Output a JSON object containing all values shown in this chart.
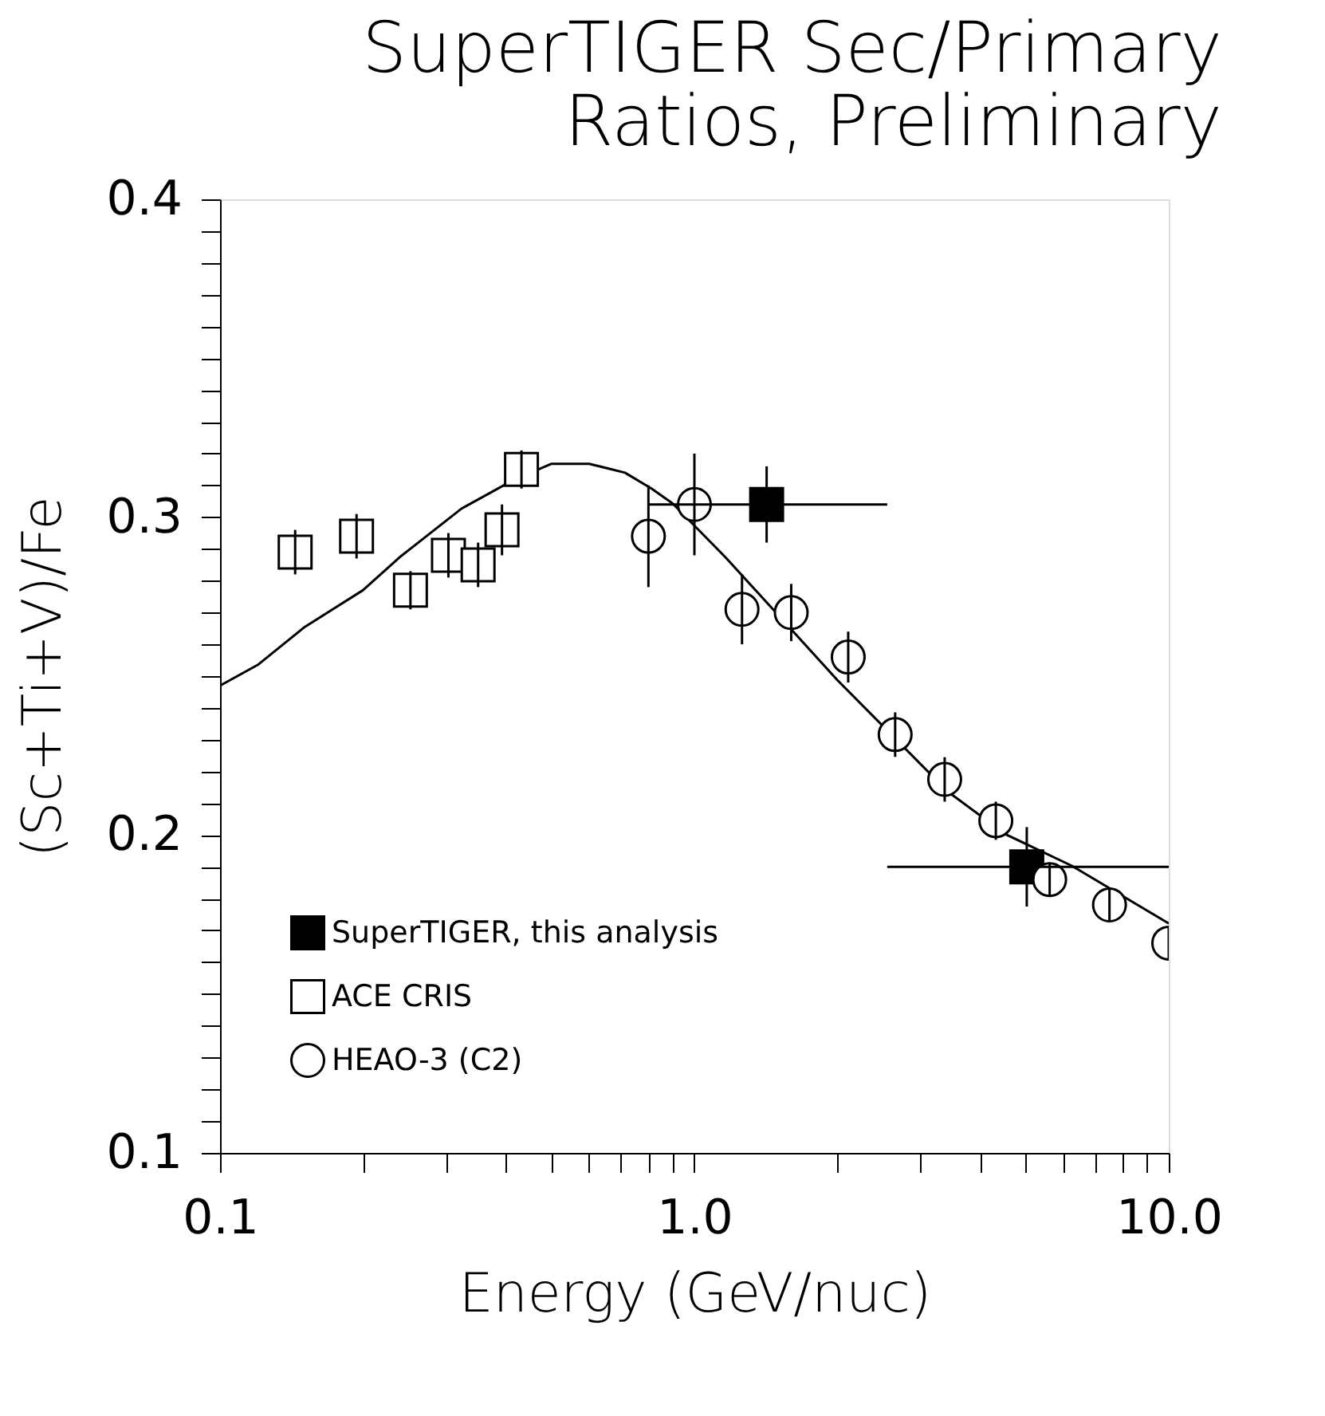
{
  "chart_data": {
    "type": "scatter",
    "title": "SuperTIGER Sec/Primary\nRatios, Preliminary",
    "xlabel": "Energy (GeV/nuc)",
    "ylabel": "(Sc+Ti+V)/Fe",
    "log": "x",
    "xlim": [
      0.1,
      10
    ],
    "ylim": [
      0.1,
      0.4
    ],
    "xticks": [
      {
        "value": 0.1,
        "label": "0.1"
      },
      {
        "value": 0.2,
        "label": null
      },
      {
        "value": 0.3,
        "label": null
      },
      {
        "value": 0.4,
        "label": null
      },
      {
        "value": 0.5,
        "label": null
      },
      {
        "value": 0.6,
        "label": null
      },
      {
        "value": 0.7,
        "label": null
      },
      {
        "value": 0.8,
        "label": null
      },
      {
        "value": 0.9,
        "label": null
      },
      {
        "value": 1,
        "label": "1.0"
      },
      {
        "value": 2,
        "label": null
      },
      {
        "value": 3,
        "label": null
      },
      {
        "value": 4,
        "label": null
      },
      {
        "value": 5,
        "label": null
      },
      {
        "value": 6,
        "label": null
      },
      {
        "value": 7,
        "label": null
      },
      {
        "value": 8,
        "label": null
      },
      {
        "value": 9,
        "label": null
      },
      {
        "value": 10,
        "label": "10.0"
      }
    ],
    "yticks": [
      0.1,
      {
        "value": 0.11,
        "label": null
      },
      {
        "value": 0.12,
        "label": null
      },
      {
        "value": 0.13,
        "label": null
      },
      {
        "value": 0.14,
        "label": null
      },
      {
        "value": 0.15,
        "label": null
      },
      {
        "value": 0.16,
        "label": null
      },
      {
        "value": 0.17,
        "label": null
      },
      {
        "value": 0.18,
        "label": null
      },
      {
        "value": 0.19,
        "label": null
      },
      0.2,
      {
        "value": 0.21,
        "label": null
      },
      {
        "value": 0.22,
        "label": null
      },
      {
        "value": 0.23,
        "label": null
      },
      {
        "value": 0.24,
        "label": null
      },
      {
        "value": 0.25,
        "label": null
      },
      {
        "value": 0.26,
        "label": null
      },
      {
        "value": 0.27,
        "label": null
      },
      {
        "value": 0.28,
        "label": null
      },
      {
        "value": 0.29,
        "label": null
      },
      0.3,
      {
        "value": 0.31,
        "label": null
      },
      {
        "value": 0.32,
        "label": null
      },
      {
        "value": 0.33,
        "label": null
      },
      {
        "value": 0.34,
        "label": null
      },
      {
        "value": 0.35,
        "label": null
      },
      {
        "value": 0.36,
        "label": null
      },
      {
        "value": 0.37,
        "label": null
      },
      {
        "value": 0.38,
        "label": null
      },
      {
        "value": 0.39,
        "label": null
      },
      0.4
    ],
    "grid": false,
    "legend": "bottom left",
    "series": [
      {
        "type": "line",
        "color": "#000000",
        "line_style": "solid",
        "marker": "none",
        "x": [
          0.1,
          0.12,
          0.151,
          0.2,
          0.24,
          0.323,
          0.413,
          0.5,
          0.6,
          0.714,
          0.812,
          0.9,
          1.164,
          1.507,
          2.0,
          2.65,
          3.42,
          4.52,
          6.25,
          10
        ],
        "values": [
          0.247,
          0.2535,
          0.2655,
          0.277,
          0.2876,
          0.3027,
          0.3115,
          0.3168,
          0.3168,
          0.314,
          0.309,
          0.3043,
          0.2873,
          0.269,
          0.2488,
          0.2304,
          0.2137,
          0.2003,
          0.1903,
          0.1722
        ]
      },
      {
        "name": "SuperTIGER, this analysis",
        "type": "scatter",
        "marker": "square",
        "color": "#000000",
        "x": [
          1.42,
          5.02
        ],
        "values": [
          0.304,
          0.19
        ],
        "errors": [
          0.012,
          0.0125
        ],
        "xerrors": [
          [
            0.8,
            2.55
          ],
          [
            2.55,
            10
          ]
        ]
      },
      {
        "name": "ACE CRIS",
        "type": "scatter",
        "marker": "square",
        "color": "#000000",
        "x": [
          0.144,
          0.194,
          0.252,
          0.303,
          0.35,
          0.393,
          0.432
        ],
        "values": [
          0.289,
          0.294,
          0.277,
          0.288,
          0.285,
          0.296,
          0.315
        ],
        "errors": [
          0.007,
          0.007,
          0.006,
          0.007,
          0.007,
          0.008,
          0.006
        ]
      },
      {
        "name": "HEAO-3 (C2)",
        "type": "scatter",
        "marker": "circle",
        "color": "#000000",
        "x": [
          0.8,
          1.0,
          1.26,
          1.6,
          2.11,
          2.65,
          3.37,
          4.32,
          5.61,
          7.5,
          10
        ],
        "values": [
          0.294,
          0.304,
          0.271,
          0.27,
          0.256,
          0.2316,
          0.2175,
          0.2045,
          0.186,
          0.178,
          0.166
        ],
        "errors": [
          0.016,
          0.016,
          0.011,
          0.009,
          0.008,
          0.007,
          0.007,
          0.006,
          0.005,
          0.005,
          0.005
        ]
      }
    ]
  }
}
